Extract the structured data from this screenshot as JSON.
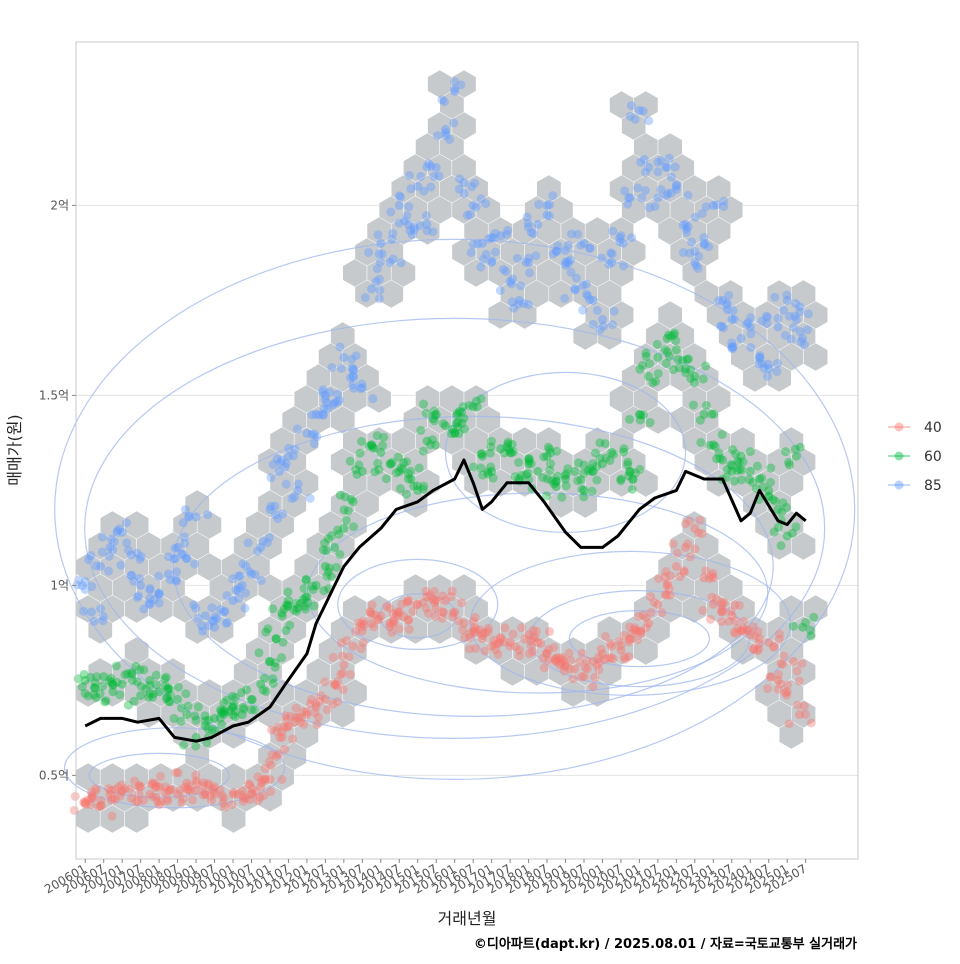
{
  "chart_data": {
    "type": "scatter",
    "title": "",
    "xlabel": "거래년월",
    "ylabel": "매매가(원)",
    "caption": "©디아파트(dapt.kr) / 2025.08.01 / 자료=국토교통부 실거래가",
    "x_range": [
      "2005-10",
      "2026-12"
    ],
    "ylim": [
      0.28,
      2.43
    ],
    "y_unit": "억",
    "y_ticks": [
      {
        "value": 0.5,
        "label": "0.5억"
      },
      {
        "value": 1.0,
        "label": "1억"
      },
      {
        "value": 1.5,
        "label": "1.5억"
      },
      {
        "value": 2.0,
        "label": "2억"
      }
    ],
    "x_ticks": [
      "200601",
      "200607",
      "200701",
      "200707",
      "200801",
      "200807",
      "200901",
      "200907",
      "201001",
      "201007",
      "201101",
      "201107",
      "201201",
      "201207",
      "201301",
      "201307",
      "201401",
      "201407",
      "201501",
      "201507",
      "201601",
      "201607",
      "201701",
      "201707",
      "201801",
      "201807",
      "201901",
      "201907",
      "202001",
      "202007",
      "202101",
      "202107",
      "202201",
      "202207",
      "202301",
      "202307",
      "202401",
      "202407",
      "202501",
      "202507"
    ],
    "grid": true,
    "legend_position": "right",
    "layers": [
      "hexbin density (gray)",
      "2D density contours",
      "scatter points by area group",
      "moving-average trend line (black)"
    ],
    "series": [
      {
        "name": "40",
        "color": "#f8766d",
        "points": [
          [
            "2006-01",
            0.43
          ],
          [
            "2006-03",
            0.44
          ],
          [
            "2006-06",
            0.42
          ],
          [
            "2006-09",
            0.45
          ],
          [
            "2007-01",
            0.46
          ],
          [
            "2007-04",
            0.44
          ],
          [
            "2007-07",
            0.47
          ],
          [
            "2007-10",
            0.45
          ],
          [
            "2008-01",
            0.47
          ],
          [
            "2008-04",
            0.46
          ],
          [
            "2008-07",
            0.45
          ],
          [
            "2008-10",
            0.48
          ],
          [
            "2009-01",
            0.46
          ],
          [
            "2009-04",
            0.45
          ],
          [
            "2009-07",
            0.47
          ],
          [
            "2009-10",
            0.44
          ],
          [
            "2010-01",
            0.45
          ],
          [
            "2010-04",
            0.46
          ],
          [
            "2010-07",
            0.45
          ],
          [
            "2010-10",
            0.47
          ],
          [
            "2011-01",
            0.49
          ],
          [
            "2011-03",
            0.55
          ],
          [
            "2011-05",
            0.6
          ],
          [
            "2011-07",
            0.63
          ],
          [
            "2011-09",
            0.64
          ],
          [
            "2012-01",
            0.66
          ],
          [
            "2012-04",
            0.68
          ],
          [
            "2012-07",
            0.7
          ],
          [
            "2012-10",
            0.74
          ],
          [
            "2013-01",
            0.79
          ],
          [
            "2013-04",
            0.84
          ],
          [
            "2013-07",
            0.88
          ],
          [
            "2013-10",
            0.9
          ],
          [
            "2014-01",
            0.92
          ],
          [
            "2014-04",
            0.9
          ],
          [
            "2014-07",
            0.93
          ],
          [
            "2014-10",
            0.91
          ],
          [
            "2015-01",
            0.95
          ],
          [
            "2015-04",
            0.97
          ],
          [
            "2015-07",
            0.94
          ],
          [
            "2015-10",
            0.96
          ],
          [
            "2016-01",
            0.93
          ],
          [
            "2016-04",
            0.9
          ],
          [
            "2016-07",
            0.88
          ],
          [
            "2016-10",
            0.86
          ],
          [
            "2017-01",
            0.84
          ],
          [
            "2017-04",
            0.86
          ],
          [
            "2017-07",
            0.85
          ],
          [
            "2017-10",
            0.83
          ],
          [
            "2018-01",
            0.87
          ],
          [
            "2018-04",
            0.85
          ],
          [
            "2018-07",
            0.82
          ],
          [
            "2018-10",
            0.8
          ],
          [
            "2019-01",
            0.79
          ],
          [
            "2019-04",
            0.78
          ],
          [
            "2019-07",
            0.76
          ],
          [
            "2019-10",
            0.8
          ],
          [
            "2020-01",
            0.82
          ],
          [
            "2020-04",
            0.84
          ],
          [
            "2020-07",
            0.83
          ],
          [
            "2020-10",
            0.86
          ],
          [
            "2021-01",
            0.88
          ],
          [
            "2021-04",
            0.9
          ],
          [
            "2021-07",
            0.95
          ],
          [
            "2021-10",
            1.0
          ],
          [
            "2022-01",
            1.05
          ],
          [
            "2022-04",
            1.1
          ],
          [
            "2022-07",
            1.15
          ],
          [
            "2022-10",
            1.02
          ],
          [
            "2023-01",
            0.95
          ],
          [
            "2023-04",
            0.93
          ],
          [
            "2023-07",
            0.92
          ],
          [
            "2023-10",
            0.88
          ],
          [
            "2024-01",
            0.87
          ],
          [
            "2024-04",
            0.86
          ],
          [
            "2024-07",
            0.85
          ],
          [
            "2024-10",
            0.75
          ],
          [
            "2025-01",
            0.72
          ],
          [
            "2025-03",
            0.8
          ],
          [
            "2025-05",
            0.66
          ]
        ]
      },
      {
        "name": "60",
        "color": "#00ba38",
        "points": [
          [
            "2006-01",
            0.75
          ],
          [
            "2006-04",
            0.73
          ],
          [
            "2006-07",
            0.76
          ],
          [
            "2006-10",
            0.72
          ],
          [
            "2007-01",
            0.74
          ],
          [
            "2007-04",
            0.77
          ],
          [
            "2007-07",
            0.71
          ],
          [
            "2007-10",
            0.75
          ],
          [
            "2008-01",
            0.72
          ],
          [
            "2008-04",
            0.73
          ],
          [
            "2008-07",
            0.7
          ],
          [
            "2008-10",
            0.66
          ],
          [
            "2009-01",
            0.6
          ],
          [
            "2009-04",
            0.63
          ],
          [
            "2009-07",
            0.65
          ],
          [
            "2009-10",
            0.67
          ],
          [
            "2010-01",
            0.68
          ],
          [
            "2010-04",
            0.66
          ],
          [
            "2010-07",
            0.7
          ],
          [
            "2010-10",
            0.74
          ],
          [
            "2011-01",
            0.8
          ],
          [
            "2011-03",
            0.86
          ],
          [
            "2011-05",
            0.92
          ],
          [
            "2011-07",
            0.96
          ],
          [
            "2011-10",
            0.94
          ],
          [
            "2012-01",
            0.97
          ],
          [
            "2012-04",
            1.0
          ],
          [
            "2012-07",
            1.05
          ],
          [
            "2012-10",
            1.1
          ],
          [
            "2013-01",
            1.15
          ],
          [
            "2013-04",
            1.22
          ],
          [
            "2013-07",
            1.3
          ],
          [
            "2013-10",
            1.37
          ],
          [
            "2014-01",
            1.35
          ],
          [
            "2014-04",
            1.32
          ],
          [
            "2014-07",
            1.3
          ],
          [
            "2014-10",
            1.28
          ],
          [
            "2015-01",
            1.25
          ],
          [
            "2015-04",
            1.38
          ],
          [
            "2015-07",
            1.45
          ],
          [
            "2015-10",
            1.42
          ],
          [
            "2016-01",
            1.4
          ],
          [
            "2016-04",
            1.44
          ],
          [
            "2016-07",
            1.47
          ],
          [
            "2016-10",
            1.34
          ],
          [
            "2017-01",
            1.3
          ],
          [
            "2017-04",
            1.36
          ],
          [
            "2017-07",
            1.35
          ],
          [
            "2017-10",
            1.28
          ],
          [
            "2018-01",
            1.32
          ],
          [
            "2018-04",
            1.3
          ],
          [
            "2018-07",
            1.34
          ],
          [
            "2018-10",
            1.26
          ],
          [
            "2019-01",
            1.28
          ],
          [
            "2019-04",
            1.3
          ],
          [
            "2019-07",
            1.25
          ],
          [
            "2019-10",
            1.3
          ],
          [
            "2020-01",
            1.32
          ],
          [
            "2020-04",
            1.35
          ],
          [
            "2020-07",
            1.28
          ],
          [
            "2020-10",
            1.3
          ],
          [
            "2021-01",
            1.45
          ],
          [
            "2021-04",
            1.55
          ],
          [
            "2021-07",
            1.6
          ],
          [
            "2021-10",
            1.65
          ],
          [
            "2022-01",
            1.62
          ],
          [
            "2022-04",
            1.57
          ],
          [
            "2022-07",
            1.55
          ],
          [
            "2022-10",
            1.45
          ],
          [
            "2023-01",
            1.37
          ],
          [
            "2023-04",
            1.33
          ],
          [
            "2023-07",
            1.3
          ],
          [
            "2023-10",
            1.34
          ],
          [
            "2024-01",
            1.3
          ],
          [
            "2024-04",
            1.28
          ],
          [
            "2024-07",
            1.25
          ],
          [
            "2024-10",
            1.2
          ],
          [
            "2025-01",
            1.13
          ],
          [
            "2025-04",
            1.34
          ],
          [
            "2025-06",
            0.89
          ]
        ]
      },
      {
        "name": "85",
        "color": "#619cff",
        "points": [
          [
            "2006-01",
            1.01
          ],
          [
            "2006-03",
            0.93
          ],
          [
            "2006-06",
            1.05
          ],
          [
            "2006-09",
            1.1
          ],
          [
            "2007-01",
            1.14
          ],
          [
            "2007-04",
            1.08
          ],
          [
            "2007-07",
            1.0
          ],
          [
            "2007-10",
            0.95
          ],
          [
            "2008-01",
            0.98
          ],
          [
            "2008-04",
            1.03
          ],
          [
            "2008-07",
            1.1
          ],
          [
            "2008-10",
            1.07
          ],
          [
            "2009-01",
            1.18
          ],
          [
            "2009-04",
            0.92
          ],
          [
            "2009-07",
            0.89
          ],
          [
            "2009-10",
            0.93
          ],
          [
            "2010-01",
            0.96
          ],
          [
            "2010-04",
            1.0
          ],
          [
            "2010-07",
            1.03
          ],
          [
            "2010-10",
            1.1
          ],
          [
            "2011-01",
            1.2
          ],
          [
            "2011-04",
            1.3
          ],
          [
            "2011-07",
            1.34
          ],
          [
            "2011-10",
            1.25
          ],
          [
            "2012-01",
            1.4
          ],
          [
            "2012-04",
            1.45
          ],
          [
            "2012-07",
            1.5
          ],
          [
            "2012-10",
            1.48
          ],
          [
            "2013-01",
            1.6
          ],
          [
            "2013-04",
            1.55
          ],
          [
            "2013-07",
            1.52
          ],
          [
            "2013-10",
            1.78
          ],
          [
            "2014-01",
            1.9
          ],
          [
            "2014-04",
            1.85
          ],
          [
            "2014-07",
            2.0
          ],
          [
            "2014-10",
            1.95
          ],
          [
            "2015-01",
            2.05
          ],
          [
            "2015-04",
            1.95
          ],
          [
            "2015-07",
            2.1
          ],
          [
            "2015-10",
            2.2
          ],
          [
            "2016-01",
            2.3
          ],
          [
            "2016-04",
            2.06
          ],
          [
            "2016-07",
            2.0
          ],
          [
            "2016-10",
            1.9
          ],
          [
            "2017-01",
            1.85
          ],
          [
            "2017-04",
            1.92
          ],
          [
            "2017-07",
            1.8
          ],
          [
            "2017-10",
            1.75
          ],
          [
            "2018-01",
            1.85
          ],
          [
            "2018-04",
            1.95
          ],
          [
            "2018-07",
            2.0
          ],
          [
            "2018-10",
            1.88
          ],
          [
            "2019-01",
            1.85
          ],
          [
            "2019-04",
            1.78
          ],
          [
            "2019-07",
            1.9
          ],
          [
            "2019-10",
            1.75
          ],
          [
            "2020-01",
            1.7
          ],
          [
            "2020-04",
            1.85
          ],
          [
            "2020-07",
            1.92
          ],
          [
            "2020-10",
            2.02
          ],
          [
            "2021-01",
            2.25
          ],
          [
            "2021-04",
            2.1
          ],
          [
            "2021-07",
            2.02
          ],
          [
            "2021-10",
            2.1
          ],
          [
            "2022-01",
            2.05
          ],
          [
            "2022-04",
            1.95
          ],
          [
            "2022-07",
            1.85
          ],
          [
            "2022-10",
            1.9
          ],
          [
            "2023-01",
            2.0
          ],
          [
            "2023-04",
            1.75
          ],
          [
            "2023-07",
            1.7
          ],
          [
            "2023-10",
            1.65
          ],
          [
            "2024-01",
            1.68
          ],
          [
            "2024-04",
            1.6
          ],
          [
            "2024-07",
            1.57
          ],
          [
            "2024-10",
            1.68
          ],
          [
            "2025-01",
            1.75
          ],
          [
            "2025-04",
            1.7
          ],
          [
            "2025-06",
            1.65
          ]
        ]
      }
    ],
    "trend_line": {
      "color": "#000000",
      "points": [
        [
          "2006-01",
          0.63
        ],
        [
          "2006-06",
          0.65
        ],
        [
          "2007-01",
          0.65
        ],
        [
          "2007-06",
          0.64
        ],
        [
          "2008-01",
          0.65
        ],
        [
          "2008-06",
          0.6
        ],
        [
          "2009-01",
          0.59
        ],
        [
          "2009-06",
          0.6
        ],
        [
          "2010-01",
          0.63
        ],
        [
          "2010-06",
          0.64
        ],
        [
          "2011-01",
          0.68
        ],
        [
          "2011-06",
          0.74
        ],
        [
          "2012-01",
          0.82
        ],
        [
          "2012-04",
          0.9
        ],
        [
          "2012-07",
          0.95
        ],
        [
          "2012-10",
          1.0
        ],
        [
          "2013-01",
          1.05
        ],
        [
          "2013-06",
          1.1
        ],
        [
          "2014-01",
          1.15
        ],
        [
          "2014-06",
          1.2
        ],
        [
          "2015-01",
          1.22
        ],
        [
          "2015-06",
          1.25
        ],
        [
          "2016-01",
          1.28
        ],
        [
          "2016-04",
          1.33
        ],
        [
          "2016-07",
          1.27
        ],
        [
          "2016-10",
          1.2
        ],
        [
          "2017-01",
          1.22
        ],
        [
          "2017-06",
          1.27
        ],
        [
          "2018-01",
          1.27
        ],
        [
          "2018-06",
          1.22
        ],
        [
          "2019-01",
          1.14
        ],
        [
          "2019-06",
          1.1
        ],
        [
          "2020-01",
          1.1
        ],
        [
          "2020-06",
          1.13
        ],
        [
          "2021-01",
          1.2
        ],
        [
          "2021-06",
          1.23
        ],
        [
          "2022-01",
          1.25
        ],
        [
          "2022-04",
          1.3
        ],
        [
          "2022-10",
          1.28
        ],
        [
          "2023-04",
          1.28
        ],
        [
          "2023-10",
          1.17
        ],
        [
          "2024-01",
          1.19
        ],
        [
          "2024-04",
          1.25
        ],
        [
          "2024-10",
          1.17
        ],
        [
          "2025-01",
          1.16
        ],
        [
          "2025-04",
          1.19
        ],
        [
          "2025-07",
          1.17
        ]
      ]
    }
  }
}
